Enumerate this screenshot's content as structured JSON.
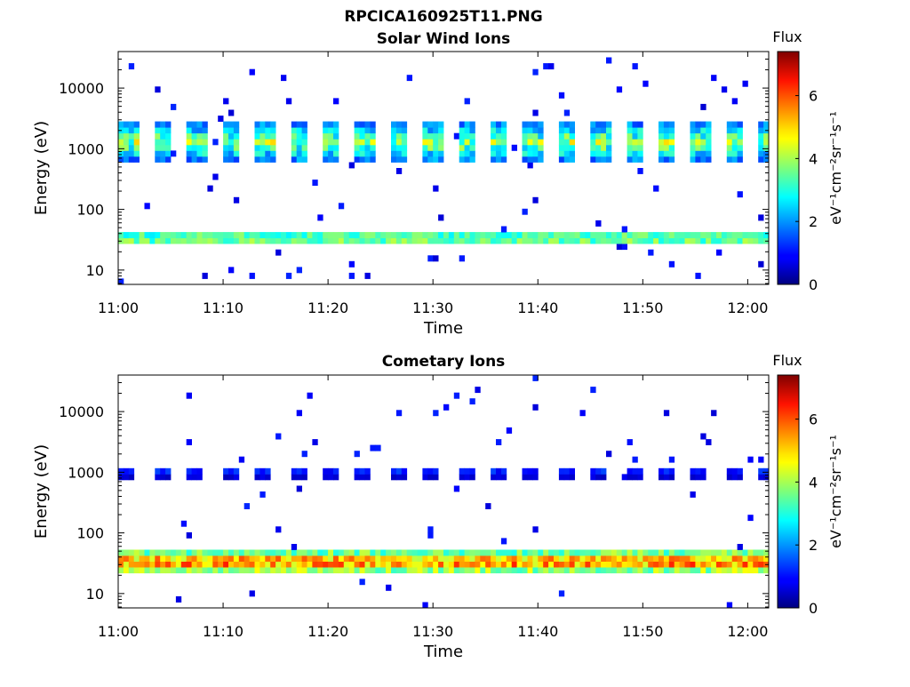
{
  "figure": {
    "title": "RPCICA160925T11.PNG"
  },
  "chart_data": [
    {
      "type": "heatmap",
      "title": "Solar Wind Ions",
      "xlabel": "Time",
      "ylabel": "Energy (eV)",
      "x_ticks": [
        "11:00",
        "11:10",
        "11:20",
        "11:30",
        "11:40",
        "11:50",
        "12:00"
      ],
      "y_ticks": [
        "10",
        "100",
        "1000",
        "10000"
      ],
      "y_scale": "log",
      "colorbar": {
        "title": "Flux",
        "label": "eV⁻¹cm⁻²sr⁻¹s⁻¹",
        "ticks": [
          "0",
          "2",
          "4",
          "6"
        ],
        "range": [
          0,
          7.4
        ]
      },
      "bands": [
        {
          "kind": "core",
          "e_lo": 600,
          "e_hi": 2800,
          "peak": 4.5,
          "period_min": 3.2,
          "on_min": 1.7
        },
        {
          "kind": "low",
          "e_lo": 25,
          "e_hi": 45,
          "peak": 4.6
        }
      ]
    },
    {
      "type": "heatmap",
      "title": "Cometary Ions",
      "xlabel": "Time",
      "ylabel": "Energy (eV)",
      "x_ticks": [
        "11:00",
        "11:10",
        "11:20",
        "11:30",
        "11:40",
        "11:50",
        "12:00"
      ],
      "y_ticks": [
        "10",
        "100",
        "1000",
        "10000"
      ],
      "y_scale": "log",
      "colorbar": {
        "title": "Flux",
        "label": "eV⁻¹cm⁻²sr⁻¹s⁻¹",
        "ticks": [
          "0",
          "2",
          "4",
          "6"
        ],
        "range": [
          0,
          7.4
        ]
      },
      "bands": [
        {
          "kind": "core",
          "e_lo": 800,
          "e_hi": 1300,
          "peak": 1.4,
          "period_min": 3.2,
          "on_min": 1.5
        },
        {
          "kind": "low",
          "e_lo": 20,
          "e_hi": 55,
          "peak": 6.3
        }
      ]
    }
  ]
}
